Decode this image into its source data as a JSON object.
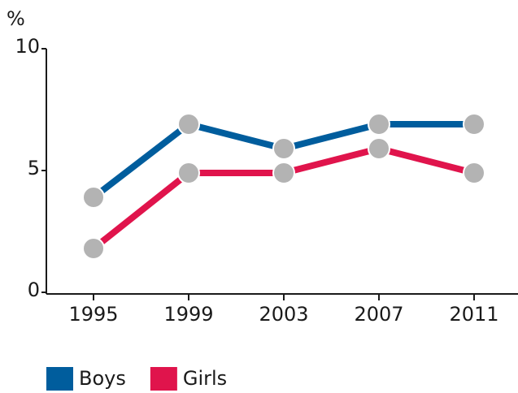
{
  "chart_data": {
    "type": "line",
    "y_label": "%",
    "categories": [
      "1995",
      "1999",
      "2003",
      "2007",
      "2011"
    ],
    "series": [
      {
        "name": "Boys",
        "color": "#005d9d",
        "values": [
          3.9,
          6.9,
          5.9,
          6.9,
          6.9
        ]
      },
      {
        "name": "Girls",
        "color": "#e0144c",
        "values": [
          1.8,
          4.9,
          4.9,
          5.9,
          4.9
        ]
      }
    ],
    "marker_color": "#b3b3b3",
    "ylim": [
      0,
      10
    ],
    "yticks": [
      0,
      5,
      10
    ]
  }
}
